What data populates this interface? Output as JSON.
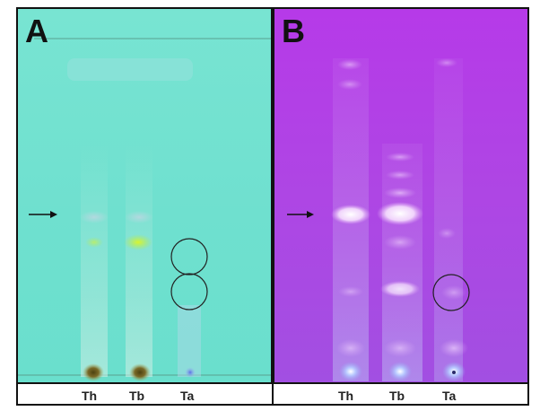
{
  "panels": [
    {
      "letter": "A",
      "lanes": [
        "Th",
        "Tb",
        "Ta"
      ]
    },
    {
      "letter": "B",
      "lanes": [
        "Th",
        "Tb",
        "Ta"
      ]
    }
  ],
  "colors": {
    "panel_a_background": "#70e1cf",
    "panel_b_background": "#ae46e4",
    "spot_yellow_green": "#c8f03c",
    "spot_white_glow": "#fff6ff",
    "origin_spot_brown": "#6a5a1e"
  }
}
